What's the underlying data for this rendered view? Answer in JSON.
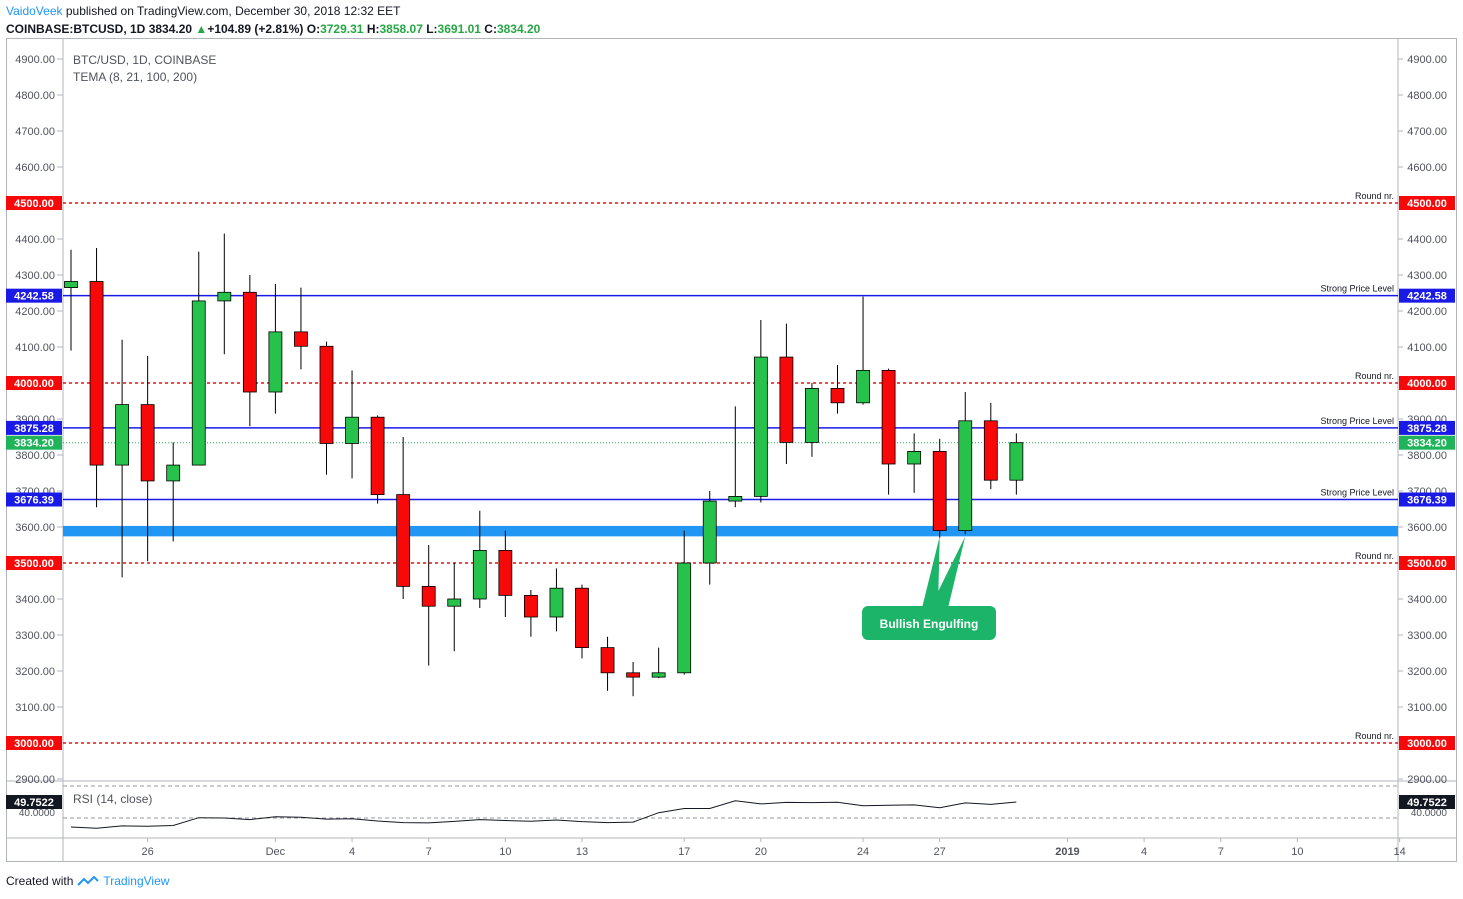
{
  "header": {
    "author": "VaidoVeek",
    "published": "published on TradingView.com, December 30, 2018 12:32 EET",
    "symbol": "COINBASE:BTCUSD, 1D",
    "last": "3834.20",
    "change_arrow": "▲",
    "change": "+104.89 (+2.81%)",
    "o_label": "O:",
    "o_value": "3729.31",
    "h_label": "H:",
    "h_value": "3858.07",
    "l_label": "L:",
    "l_value": "3691.01",
    "c_label": "C:",
    "c_value": "3834.20"
  },
  "legend": {
    "title": "BTC/USD, 1D, COINBASE",
    "indicator": "TEMA (8, 21, 100, 200)"
  },
  "rsi": {
    "label": "RSI (14, close)",
    "value": "49.7522",
    "tick": "40.0000",
    "values": [
      34.5,
      33.8,
      35.2,
      35.0,
      35.4,
      40.2,
      40.0,
      39.0,
      40.8,
      40.5,
      39.3,
      39.6,
      38.2,
      37.2,
      37.0,
      37.9,
      39.0,
      38.5,
      38.0,
      38.8,
      37.8,
      37.2,
      37.5,
      43.2,
      45.8,
      45.8,
      50.5,
      48.6,
      49.5,
      49.4,
      49.6,
      47.5,
      47.8,
      48.0,
      46.3,
      49.2,
      48.3,
      49.75
    ]
  },
  "annotation": {
    "label": "Bullish Engulfing",
    "color": "#1bb468"
  },
  "colors": {
    "up": "#26c24b",
    "down": "#f70909",
    "blue_line": "#1a1ae6",
    "red_line": "#f70909",
    "zone": "#2196f3",
    "last_price": "#1fb35a"
  },
  "footer": {
    "created": "Created with",
    "brand": "TradingView"
  },
  "chart_data": {
    "type": "candlestick",
    "title": "BTC/USD, 1D, COINBASE",
    "ylim": [
      2860,
      4940
    ],
    "y_ticks": [
      "4900.00",
      "4800.00",
      "4700.00",
      "4600.00",
      "4400.00",
      "4300.00",
      "4200.00",
      "4100.00",
      "3900.00",
      "3800.00",
      "3700.00",
      "3600.00",
      "3400.00",
      "3300.00",
      "3200.00",
      "3100.00",
      "2900.00"
    ],
    "x_tick_labels": [
      "26",
      "Dec",
      "4",
      "7",
      "10",
      "13",
      "17",
      "20",
      "24",
      "27",
      "2019",
      "4",
      "7",
      "10",
      "14"
    ],
    "candles": [
      {
        "o": 4265,
        "h": 4370,
        "l": 4090,
        "c": 4282
      },
      {
        "o": 4282,
        "h": 4375,
        "l": 3655,
        "c": 3772
      },
      {
        "o": 3772,
        "h": 4120,
        "l": 3460,
        "c": 3940
      },
      {
        "o": 3940,
        "h": 4075,
        "l": 3505,
        "c": 3728
      },
      {
        "o": 3728,
        "h": 3835,
        "l": 3560,
        "c": 3772
      },
      {
        "o": 3772,
        "h": 4365,
        "l": 3772,
        "c": 4228
      },
      {
        "o": 4228,
        "h": 4415,
        "l": 4080,
        "c": 4252
      },
      {
        "o": 4252,
        "h": 4300,
        "l": 3880,
        "c": 3975
      },
      {
        "o": 3975,
        "h": 4275,
        "l": 3915,
        "c": 4142
      },
      {
        "o": 4142,
        "h": 4265,
        "l": 4038,
        "c": 4102
      },
      {
        "o": 4102,
        "h": 4115,
        "l": 3745,
        "c": 3832
      },
      {
        "o": 3832,
        "h": 4035,
        "l": 3735,
        "c": 3905
      },
      {
        "o": 3905,
        "h": 3910,
        "l": 3665,
        "c": 3690
      },
      {
        "o": 3690,
        "h": 3850,
        "l": 3400,
        "c": 3435
      },
      {
        "o": 3435,
        "h": 3550,
        "l": 3215,
        "c": 3380
      },
      {
        "o": 3380,
        "h": 3500,
        "l": 3255,
        "c": 3400
      },
      {
        "o": 3400,
        "h": 3645,
        "l": 3375,
        "c": 3535
      },
      {
        "o": 3535,
        "h": 3590,
        "l": 3350,
        "c": 3410
      },
      {
        "o": 3410,
        "h": 3425,
        "l": 3295,
        "c": 3350
      },
      {
        "o": 3350,
        "h": 3485,
        "l": 3310,
        "c": 3430
      },
      {
        "o": 3430,
        "h": 3440,
        "l": 3235,
        "c": 3265
      },
      {
        "o": 3265,
        "h": 3295,
        "l": 3145,
        "c": 3195
      },
      {
        "o": 3195,
        "h": 3225,
        "l": 3130,
        "c": 3183
      },
      {
        "o": 3183,
        "h": 3265,
        "l": 3180,
        "c": 3195
      },
      {
        "o": 3195,
        "h": 3590,
        "l": 3190,
        "c": 3500
      },
      {
        "o": 3500,
        "h": 3700,
        "l": 3440,
        "c": 3672
      },
      {
        "o": 3672,
        "h": 3935,
        "l": 3655,
        "c": 3685
      },
      {
        "o": 3685,
        "h": 4175,
        "l": 3668,
        "c": 4072
      },
      {
        "o": 4072,
        "h": 4165,
        "l": 3775,
        "c": 3835
      },
      {
        "o": 3835,
        "h": 4000,
        "l": 3795,
        "c": 3985
      },
      {
        "o": 3985,
        "h": 4050,
        "l": 3915,
        "c": 3945
      },
      {
        "o": 3945,
        "h": 4240,
        "l": 3940,
        "c": 4035
      },
      {
        "o": 4035,
        "h": 4040,
        "l": 3690,
        "c": 3775
      },
      {
        "o": 3775,
        "h": 3860,
        "l": 3695,
        "c": 3810
      },
      {
        "o": 3810,
        "h": 3845,
        "l": 3570,
        "c": 3590
      },
      {
        "o": 3590,
        "h": 3975,
        "l": 3580,
        "c": 3895
      },
      {
        "o": 3895,
        "h": 3945,
        "l": 3705,
        "c": 3730
      },
      {
        "o": 3730,
        "h": 3860,
        "l": 3690,
        "c": 3834.2
      }
    ],
    "horizontal_lines": [
      {
        "value": 4500.0,
        "label": "4500.00",
        "note": "Round nr.",
        "style": "dashed-red"
      },
      {
        "value": 4242.58,
        "label": "4242.58",
        "note": "Strong Price Level",
        "style": "solid-blue"
      },
      {
        "value": 4000.0,
        "label": "4000.00",
        "note": "Round nr.",
        "style": "dashed-red"
      },
      {
        "value": 3875.28,
        "label": "3875.28",
        "note": "Strong Price Level",
        "style": "solid-blue"
      },
      {
        "value": 3676.39,
        "label": "3676.39",
        "note": "Strong Price Level",
        "style": "solid-blue"
      },
      {
        "value": 3500.0,
        "label": "3500.00",
        "note": "Round nr.",
        "style": "dashed-red"
      },
      {
        "value": 3000.0,
        "label": "3000.00",
        "note": "Round nr.",
        "style": "dashed-red"
      }
    ],
    "support_zone": [
      3574,
      3603
    ],
    "last_price": {
      "value": 3834.2,
      "label": "3834.20"
    },
    "grid": false
  }
}
